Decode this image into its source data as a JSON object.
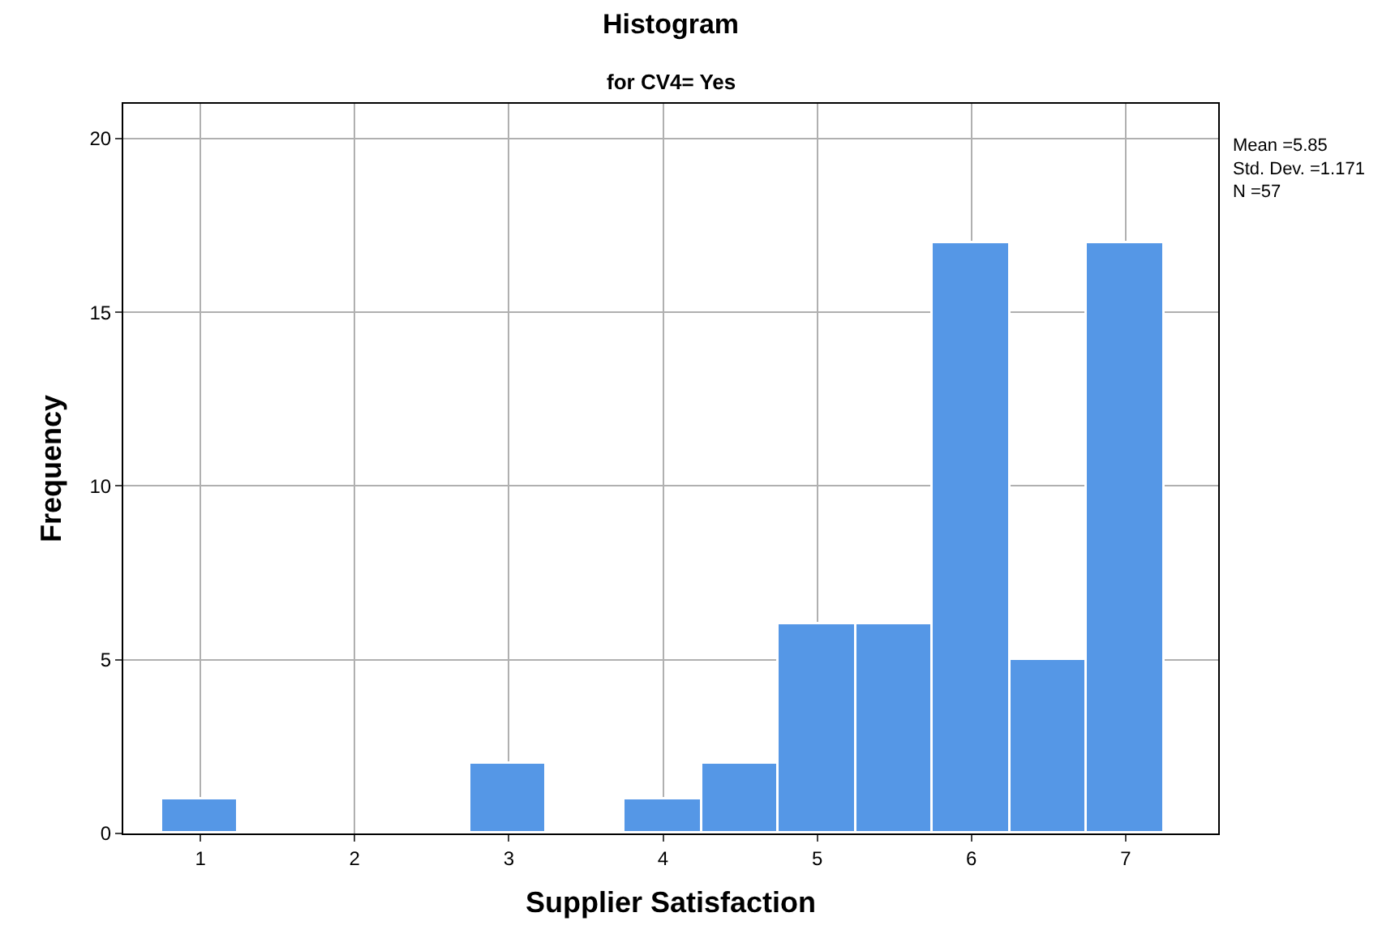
{
  "chart_data": {
    "type": "histogram",
    "title": "Histogram",
    "subtitle": "for CV4= Yes",
    "xlabel": "Supplier Satisfaction",
    "ylabel": "Frequency",
    "bins": [
      0.75,
      1.25,
      1.75,
      2.25,
      2.75,
      3.25,
      3.75,
      4.25,
      4.75,
      5.25,
      5.75,
      6.25,
      6.75,
      7.25
    ],
    "values": [
      1,
      0,
      0,
      0,
      2,
      0,
      1,
      2,
      6,
      6,
      17,
      5,
      17
    ],
    "color": "#5597e6",
    "xlim": [
      0.5,
      7.6
    ],
    "xticks": [
      1,
      2,
      3,
      4,
      5,
      6,
      7
    ],
    "ylim": [
      0,
      21
    ],
    "yticks": [
      0,
      5,
      10,
      15,
      20
    ],
    "grid": true,
    "annotations": [
      "Mean =5.85",
      "Std. Dev. =1.171",
      "N =57"
    ]
  }
}
